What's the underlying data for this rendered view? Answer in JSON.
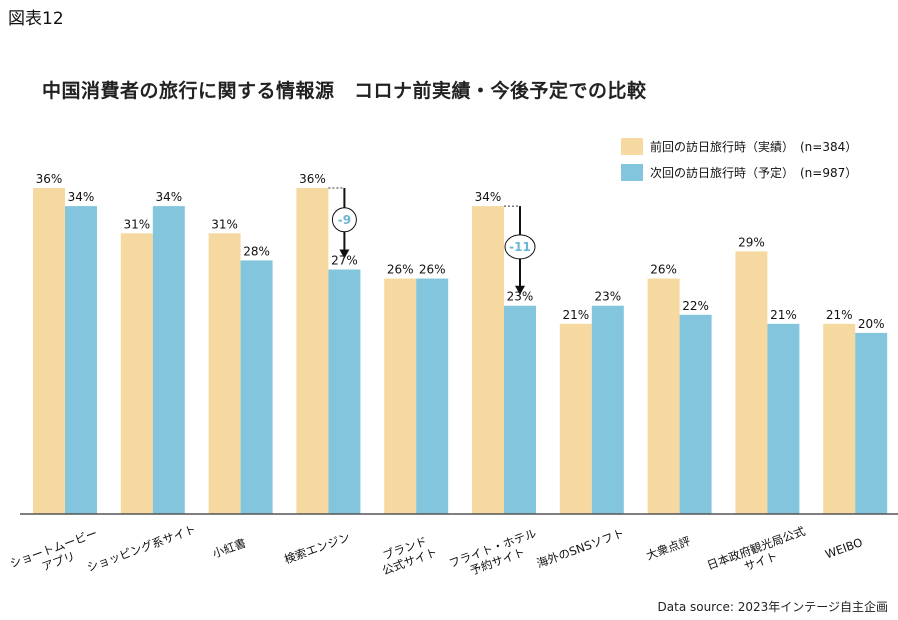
{
  "figure_label": "図表12",
  "chart_data": {
    "type": "bar",
    "title": "中国消費者の旅行に関する情報源　コロナ前実績・今後予定での比較",
    "categories": [
      [
        "ショートムービー",
        "アプリ"
      ],
      [
        "ショッピング系サイト"
      ],
      [
        "小紅書"
      ],
      [
        "検索エンジン"
      ],
      [
        "ブランド",
        "公式サイト"
      ],
      [
        "フライト・ホテル",
        "予約サイト"
      ],
      [
        "海外のSNSソフト"
      ],
      [
        "大衆点評"
      ],
      [
        "日本政府観光局公式",
        "サイト"
      ],
      [
        "WEIBO"
      ]
    ],
    "series": [
      {
        "name": "前回の訪日旅行時（実績）　(n=384）",
        "color": "#f6d9a0",
        "values": [
          36,
          31,
          31,
          36,
          26,
          34,
          21,
          26,
          29,
          21
        ]
      },
      {
        "name": "次回の訪日旅行時（予定）　(n=987）",
        "color": "#83c5dc",
        "values": [
          34,
          34,
          28,
          27,
          26,
          23,
          23,
          22,
          21,
          20
        ]
      }
    ],
    "annotations": [
      {
        "category_index": 3,
        "label": "-9"
      },
      {
        "category_index": 5,
        "label": "-11"
      }
    ],
    "value_suffix": "%",
    "ylim": [
      0,
      36
    ],
    "xlabel": "",
    "ylabel": "",
    "grid": false,
    "legend_position": "top-right"
  },
  "source": "Data source: 2023年インテージ自主企画"
}
